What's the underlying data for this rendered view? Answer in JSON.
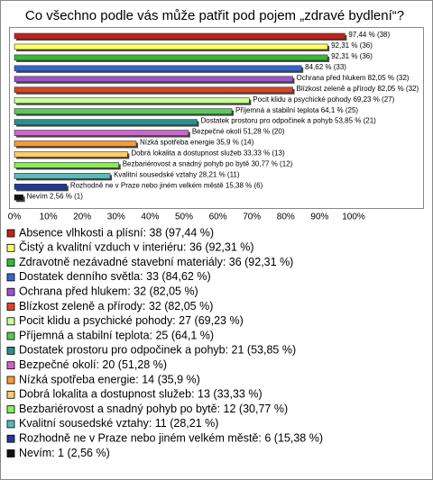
{
  "chart_data": {
    "type": "bar",
    "orientation": "horizontal",
    "title": "Co všechno podle vás může patřit pod pojem „zdravé bydlení“?",
    "categories": [
      "Absence vlhkosti a plísní: 38 (97,44 %)",
      "Čistý a kvalitní vzduch v interiéru: 36 (92,31 %)",
      "Zdravotně nezávadné stavební materiály: 36 (92,31 %)",
      "Dostatek denního světla: 33 (84,62 %)",
      "Ochrana před hlukem: 32 (82,05 %)",
      "Blízkost zeleně a přírody: 32 (82,05 %)",
      "Pocit klidu a psychické pohody: 27 (69,23 %)",
      "Příjemná a stabilní teplota: 25 (64,1 %)",
      "Dostatek prostoru pro odpočinek a pohyb: 21 (53,85 %)",
      "Bezpečné okolí: 20 (51,28 %)",
      "Nízká spotřeba energie: 14 (35,9 %)",
      "Dobrá lokalita a dostupnost služeb: 13 (33,33 %)",
      "Bezbariérovost a snadný pohyb po bytě: 12 (30,77 %)",
      "Kvalitní sousedské vztahy: 11 (28,21 %)",
      "Rozhodně ne v Praze nebo jiném velkém městě: 6 (15,38 %)",
      "Nevím: 1 (2,56 %)"
    ],
    "values": [
      97.44,
      92.31,
      92.31,
      84.62,
      82.05,
      82.05,
      69.23,
      64.1,
      53.85,
      51.28,
      35.9,
      33.33,
      30.77,
      28.21,
      15.38,
      2.56
    ],
    "value_labels": [
      "97,44 % (38)",
      "92,31 % (36)",
      "92,31 % (36)",
      "84,62 % (33)",
      "Ochrana před hlukem 82,05 % (32)",
      "Blízkost zeleně a přírody 82,05 % (32)",
      "Pocit klidu a psychické pohody 69,23 % (27)",
      "Příjemná a stabilní teplota 64,1 % (25)",
      "Dostatek prostoru pro odpočinek a pohyb 53,85 % (21)",
      "Bezpečné okolí 51,28 % (20)",
      "Nízká spotřeba energie 35,9 % (14)",
      "Dobrá lokalita a dostupnost služeb 33,33 % (13)",
      "Bezbariérovost a snadný pohyb po bytě 30,77 % (12)",
      "Kvalitní sousedské vztahy 28,21 % (11)",
      "Rozhodně ne v Praze nebo jiném velkém městě 15,38 % (6)",
      "Nevím 2,56 % (1)"
    ],
    "colors": [
      "#c8201a",
      "#ffff66",
      "#33bb33",
      "#3366cc",
      "#9955cc",
      "#dd4422",
      "#ccff99",
      "#55cc55",
      "#2a8f8f",
      "#cc66cc",
      "#ff9933",
      "#ffcc66",
      "#88ee55",
      "#55bbbb",
      "#1f3a99",
      "#111111"
    ],
    "xlim": [
      0,
      100
    ],
    "xticks": [
      {
        "value": 0,
        "label": "0%"
      },
      {
        "value": 10,
        "label": "10%"
      },
      {
        "value": 20,
        "label": "20%"
      },
      {
        "value": 30,
        "label": "30%"
      },
      {
        "value": 40,
        "label": "40%"
      },
      {
        "value": 50,
        "label": "50%"
      },
      {
        "value": 60,
        "label": "60%"
      },
      {
        "value": 70,
        "label": "70%"
      },
      {
        "value": 80,
        "label": "80%"
      },
      {
        "value": 90,
        "label": "90%"
      },
      {
        "value": 100,
        "label": "100%"
      }
    ],
    "grid": false
  }
}
